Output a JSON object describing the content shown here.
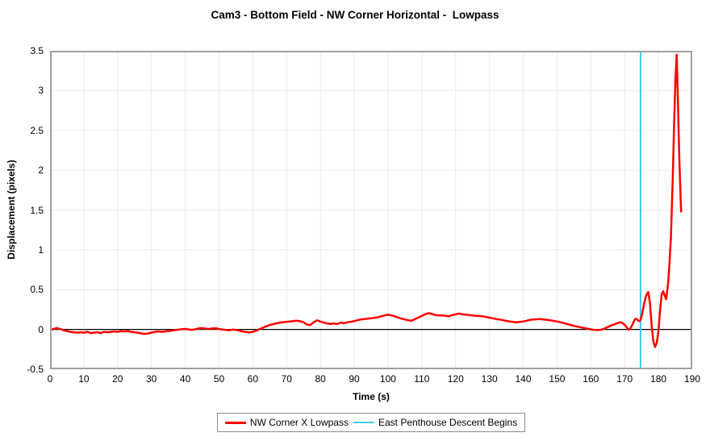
{
  "title": "Cam3 - Bottom Field - NW Corner Horizontal -  Lowpass",
  "chart_data": {
    "type": "line",
    "title": "Cam3 - Bottom Field - NW Corner Horizontal -  Lowpass",
    "xlabel": "Time (s)",
    "ylabel": "Displacement (pixels)",
    "xlim": [
      0,
      190
    ],
    "ylim": [
      -0.5,
      3.5
    ],
    "x_ticks": [
      0,
      10,
      20,
      30,
      40,
      50,
      60,
      70,
      80,
      90,
      100,
      110,
      120,
      130,
      140,
      150,
      160,
      170,
      180,
      190
    ],
    "y_ticks": [
      {
        "v": 3.5,
        "label": "3.5"
      },
      {
        "v": 3,
        "label": "3"
      },
      {
        "v": 2.5,
        "label": "2.5"
      },
      {
        "v": 2,
        "label": "2"
      },
      {
        "v": 1.5,
        "label": "1.5"
      },
      {
        "v": 1,
        "label": "1"
      },
      {
        "v": 0.5,
        "label": "0.5"
      },
      {
        "v": 0,
        "label": "0"
      },
      {
        "v": -0.5,
        "label": "-0.5"
      }
    ],
    "grid": true,
    "zero_line": true,
    "legend_position": "bottom-center",
    "series": [
      {
        "name": "NW Corner X Lowpass",
        "color": "#ff0000",
        "points": [
          [
            0,
            -0.005
          ],
          [
            1,
            0.005
          ],
          [
            2,
            0.017
          ],
          [
            3,
            0.005
          ],
          [
            4,
            -0.01
          ],
          [
            5,
            -0.02
          ],
          [
            6,
            -0.03
          ],
          [
            7,
            -0.035
          ],
          [
            8,
            -0.04
          ],
          [
            9,
            -0.035
          ],
          [
            10,
            -0.04
          ],
          [
            11,
            -0.03
          ],
          [
            12,
            -0.045
          ],
          [
            13,
            -0.04
          ],
          [
            14,
            -0.035
          ],
          [
            15,
            -0.045
          ],
          [
            16,
            -0.03
          ],
          [
            17,
            -0.035
          ],
          [
            18,
            -0.03
          ],
          [
            19,
            -0.025
          ],
          [
            20,
            -0.03
          ],
          [
            21,
            -0.02
          ],
          [
            22,
            -0.025
          ],
          [
            23,
            -0.02
          ],
          [
            24,
            -0.03
          ],
          [
            25,
            -0.035
          ],
          [
            26,
            -0.04
          ],
          [
            27,
            -0.05
          ],
          [
            28,
            -0.055
          ],
          [
            29,
            -0.05
          ],
          [
            30,
            -0.04
          ],
          [
            31,
            -0.03
          ],
          [
            32,
            -0.025
          ],
          [
            33,
            -0.03
          ],
          [
            34,
            -0.025
          ],
          [
            35,
            -0.02
          ],
          [
            36,
            -0.015
          ],
          [
            37,
            -0.008
          ],
          [
            38,
            -0.003
          ],
          [
            39,
            0.002
          ],
          [
            40,
            0.006
          ],
          [
            41,
            0
          ],
          [
            42,
            -0.005
          ],
          [
            43,
            0.002
          ],
          [
            44,
            0.012
          ],
          [
            45,
            0.016
          ],
          [
            46,
            0.01
          ],
          [
            47,
            0.005
          ],
          [
            48,
            0.012
          ],
          [
            49,
            0.015
          ],
          [
            50,
            0.005
          ],
          [
            51,
            -0.002
          ],
          [
            52,
            -0.006
          ],
          [
            53,
            -0.01
          ],
          [
            54,
            -0.002
          ],
          [
            55,
            -0.006
          ],
          [
            56,
            -0.015
          ],
          [
            57,
            -0.025
          ],
          [
            58,
            -0.032
          ],
          [
            59,
            -0.037
          ],
          [
            60,
            -0.03
          ],
          [
            61,
            -0.015
          ],
          [
            62,
            0.002
          ],
          [
            63,
            0.022
          ],
          [
            64,
            0.04
          ],
          [
            65,
            0.055
          ],
          [
            66,
            0.066
          ],
          [
            67,
            0.076
          ],
          [
            68,
            0.086
          ],
          [
            69,
            0.09
          ],
          [
            70,
            0.096
          ],
          [
            71,
            0.1
          ],
          [
            72,
            0.105
          ],
          [
            73,
            0.11
          ],
          [
            74,
            0.104
          ],
          [
            75,
            0.09
          ],
          [
            76,
            0.062
          ],
          [
            77,
            0.055
          ],
          [
            78,
            0.09
          ],
          [
            79,
            0.115
          ],
          [
            80,
            0.1
          ],
          [
            81,
            0.085
          ],
          [
            82,
            0.075
          ],
          [
            83,
            0.068
          ],
          [
            84,
            0.076
          ],
          [
            85,
            0.068
          ],
          [
            86,
            0.086
          ],
          [
            87,
            0.078
          ],
          [
            88,
            0.09
          ],
          [
            89,
            0.096
          ],
          [
            90,
            0.106
          ],
          [
            91,
            0.116
          ],
          [
            92,
            0.126
          ],
          [
            93,
            0.13
          ],
          [
            94,
            0.136
          ],
          [
            95,
            0.14
          ],
          [
            96,
            0.146
          ],
          [
            97,
            0.152
          ],
          [
            98,
            0.165
          ],
          [
            99,
            0.176
          ],
          [
            100,
            0.185
          ],
          [
            101,
            0.176
          ],
          [
            102,
            0.165
          ],
          [
            103,
            0.15
          ],
          [
            104,
            0.136
          ],
          [
            105,
            0.125
          ],
          [
            106,
            0.115
          ],
          [
            107,
            0.11
          ],
          [
            108,
            0.13
          ],
          [
            109,
            0.15
          ],
          [
            110,
            0.17
          ],
          [
            111,
            0.19
          ],
          [
            112,
            0.205
          ],
          [
            113,
            0.195
          ],
          [
            114,
            0.18
          ],
          [
            115,
            0.176
          ],
          [
            116,
            0.176
          ],
          [
            117,
            0.17
          ],
          [
            118,
            0.166
          ],
          [
            119,
            0.18
          ],
          [
            120,
            0.19
          ],
          [
            121,
            0.2
          ],
          [
            122,
            0.19
          ],
          [
            123,
            0.186
          ],
          [
            124,
            0.18
          ],
          [
            125,
            0.176
          ],
          [
            126,
            0.17
          ],
          [
            127,
            0.168
          ],
          [
            128,
            0.165
          ],
          [
            129,
            0.156
          ],
          [
            130,
            0.148
          ],
          [
            131,
            0.14
          ],
          [
            132,
            0.13
          ],
          [
            133,
            0.125
          ],
          [
            134,
            0.116
          ],
          [
            135,
            0.108
          ],
          [
            136,
            0.1
          ],
          [
            137,
            0.095
          ],
          [
            138,
            0.09
          ],
          [
            139,
            0.095
          ],
          [
            140,
            0.1
          ],
          [
            141,
            0.11
          ],
          [
            142,
            0.12
          ],
          [
            143,
            0.125
          ],
          [
            144,
            0.128
          ],
          [
            145,
            0.13
          ],
          [
            146,
            0.125
          ],
          [
            147,
            0.12
          ],
          [
            148,
            0.115
          ],
          [
            149,
            0.108
          ],
          [
            150,
            0.1
          ],
          [
            151,
            0.09
          ],
          [
            152,
            0.08
          ],
          [
            153,
            0.068
          ],
          [
            154,
            0.057
          ],
          [
            155,
            0.045
          ],
          [
            156,
            0.035
          ],
          [
            157,
            0.027
          ],
          [
            158,
            0.018
          ],
          [
            159,
            0.01
          ],
          [
            160,
            0
          ],
          [
            161,
            -0.005
          ],
          [
            162,
            -0.008
          ],
          [
            163,
            -0.005
          ],
          [
            164,
            0.01
          ],
          [
            165,
            0.03
          ],
          [
            166,
            0.05
          ],
          [
            167,
            0.065
          ],
          [
            168,
            0.08
          ],
          [
            168.5,
            0.09
          ],
          [
            169,
            0.088
          ],
          [
            170,
            0.06
          ],
          [
            170.7,
            0.02
          ],
          [
            171.2,
            -0.005
          ],
          [
            171.8,
            0.02
          ],
          [
            172.4,
            0.07
          ],
          [
            173,
            0.125
          ],
          [
            173.4,
            0.135
          ],
          [
            174,
            0.11
          ],
          [
            174.4,
            0.105
          ],
          [
            174.7,
            0.12
          ],
          [
            175.2,
            0.2
          ],
          [
            175.8,
            0.33
          ],
          [
            176.4,
            0.43
          ],
          [
            177,
            0.47
          ],
          [
            177.5,
            0.33
          ],
          [
            178,
            0.05
          ],
          [
            178.5,
            -0.15
          ],
          [
            179,
            -0.22
          ],
          [
            179.5,
            -0.17
          ],
          [
            180,
            -0.02
          ],
          [
            180.5,
            0.25
          ],
          [
            181,
            0.45
          ],
          [
            181.4,
            0.48
          ],
          [
            181.9,
            0.42
          ],
          [
            182.3,
            0.38
          ],
          [
            182.9,
            0.6
          ],
          [
            183.3,
            0.85
          ],
          [
            183.7,
            1.17
          ],
          [
            184.2,
            1.85
          ],
          [
            184.6,
            2.53
          ],
          [
            185,
            3.13
          ],
          [
            185.4,
            3.45
          ],
          [
            185.8,
            2.8
          ],
          [
            186.2,
            2.1
          ],
          [
            186.7,
            1.48
          ]
        ]
      }
    ],
    "event_lines": [
      {
        "name": "East Penthouse Descent Begins",
        "x": 174.7,
        "color": "#41c7f3"
      }
    ]
  },
  "legend": {
    "series_label": "NW Corner X Lowpass",
    "event_label": "East Penthouse Descent Begins"
  },
  "colors": {
    "series": "#ff0000",
    "event_line": "#41c7f3",
    "gridline": "#ebebeb",
    "plot_border": "#a0a0a0",
    "zero_line": "#000000",
    "background": "#ffffff"
  }
}
